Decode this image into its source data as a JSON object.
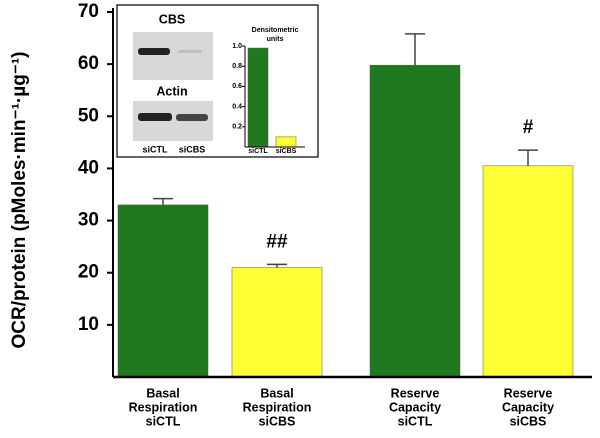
{
  "chart_data": [
    {
      "type": "bar",
      "y_label": "OCR/protein (pMoles·min⁻¹·µg⁻¹)",
      "categories": [
        [
          "Basal",
          "Respiration",
          "siCTL"
        ],
        [
          "Basal",
          "Respiration",
          "siCBS"
        ],
        [
          "Reserve",
          "Capacity",
          "siCTL"
        ],
        [
          "Reserve",
          "Capacity",
          "siCBS"
        ]
      ],
      "values": [
        33,
        21,
        59.8,
        40.5
      ],
      "errors": [
        1.2,
        0.6,
        6,
        3
      ],
      "colors": [
        "#1f7a1f",
        "#ffff33",
        "#1f7a1f",
        "#ffff33"
      ],
      "significance": [
        null,
        "##",
        null,
        "#"
      ],
      "ylim": [
        0,
        70
      ],
      "yticks": [
        10,
        20,
        30,
        40,
        50,
        60,
        70
      ]
    },
    {
      "type": "bar",
      "title": "Densitometric units",
      "blot_labels": [
        "CBS",
        "Actin"
      ],
      "lane_labels": [
        "siCTL",
        "siCBS"
      ],
      "categories": [
        "siCTL",
        "siCBS"
      ],
      "values": [
        0.98,
        0.1
      ],
      "colors": [
        "#1f7a1f",
        "#ffff33"
      ],
      "ylim": [
        0,
        1.0
      ],
      "yticks": [
        {
          "value": 0.2,
          "label": "0.2"
        },
        {
          "value": 0.4,
          "label": "0.4"
        },
        {
          "value": 0.6,
          "label": "0.6"
        },
        {
          "value": 0.8,
          "label": "0.8"
        },
        {
          "value": 1.0,
          "label": "1.0"
        }
      ]
    }
  ]
}
